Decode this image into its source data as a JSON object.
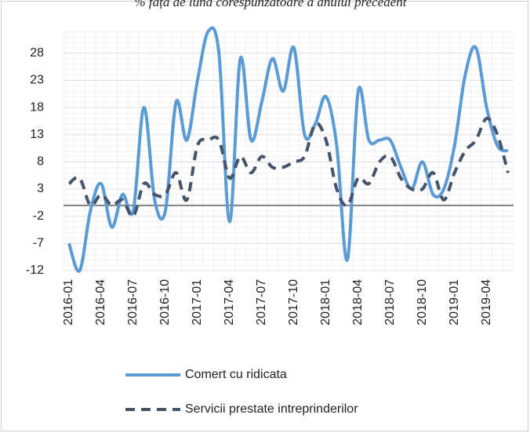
{
  "chart_data": {
    "type": "line",
    "title": "% față de luna corespunzătoare a anului precedent",
    "categories": [
      "2016-01",
      null,
      null,
      "2016-04",
      null,
      null,
      "2016-07",
      null,
      null,
      "2016-10",
      null,
      null,
      "2017-01",
      null,
      null,
      "2017-04",
      null,
      null,
      "2017-07",
      null,
      null,
      "2017-10",
      null,
      null,
      "2018-01",
      null,
      null,
      "2018-04",
      null,
      null,
      "2018-07",
      null,
      null,
      "2018-10",
      null,
      null,
      "2019-01",
      null,
      null,
      "2019-04",
      null,
      null
    ],
    "series": [
      {
        "name": "Comert cu ridicata",
        "color": "#5b9bd5",
        "dash": false,
        "values": [
          -7,
          -12,
          -1,
          4,
          -4,
          2,
          -1,
          18,
          1,
          -1,
          19,
          12,
          23,
          32,
          28,
          -3,
          27,
          12,
          19,
          27,
          21,
          29,
          13,
          15,
          20,
          11,
          -10,
          21,
          12,
          12,
          12,
          7,
          3,
          8,
          2,
          3,
          11,
          24,
          29,
          18,
          11,
          10
        ]
      },
      {
        "name": "Servicii prestate intreprinderilor",
        "color": "#44546a",
        "dash": true,
        "values": [
          4,
          5,
          0,
          2,
          0,
          1,
          -2,
          4,
          2,
          2,
          6,
          1,
          11,
          12,
          12,
          5,
          9,
          6,
          9,
          7,
          7,
          8,
          9,
          15,
          12,
          3,
          0,
          5,
          4,
          8,
          9,
          5,
          3,
          3,
          6,
          1,
          6,
          10,
          12,
          16,
          13,
          6
        ]
      }
    ],
    "ylim": [
      -12,
      32
    ],
    "yticks": [
      -12,
      -7,
      -2,
      3,
      8,
      13,
      18,
      23,
      28
    ],
    "grid": true
  }
}
